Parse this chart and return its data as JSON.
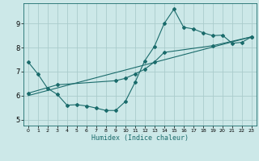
{
  "xlabel": "Humidex (Indice chaleur)",
  "bg_color": "#cce8e8",
  "line_color": "#1a6b6b",
  "grid_color": "#aacccc",
  "xlim": [
    -0.5,
    23.5
  ],
  "ylim": [
    4.75,
    9.85
  ],
  "yticks": [
    5,
    6,
    7,
    8,
    9
  ],
  "xticks": [
    0,
    1,
    2,
    3,
    4,
    5,
    6,
    7,
    8,
    9,
    10,
    11,
    12,
    13,
    14,
    15,
    16,
    17,
    18,
    19,
    20,
    21,
    22,
    23
  ],
  "curve1_x": [
    0,
    1,
    2,
    3,
    4,
    5,
    6,
    7,
    8,
    9,
    10,
    11,
    12,
    13,
    14,
    15,
    16,
    17,
    18,
    19,
    20,
    21,
    22,
    23
  ],
  "curve1_y": [
    7.4,
    6.9,
    6.3,
    6.05,
    5.6,
    5.62,
    5.57,
    5.48,
    5.38,
    5.38,
    5.75,
    6.55,
    7.45,
    8.05,
    9.0,
    9.6,
    8.85,
    8.78,
    8.62,
    8.5,
    8.52,
    8.18,
    8.22,
    8.45
  ],
  "curve2_x": [
    0,
    3,
    9,
    10,
    11,
    12,
    13,
    14,
    19,
    23
  ],
  "curve2_y": [
    6.1,
    6.45,
    6.62,
    6.72,
    6.9,
    7.1,
    7.4,
    7.8,
    8.08,
    8.45
  ],
  "curve3_x": [
    0,
    23
  ],
  "curve3_y": [
    6.0,
    8.45
  ]
}
